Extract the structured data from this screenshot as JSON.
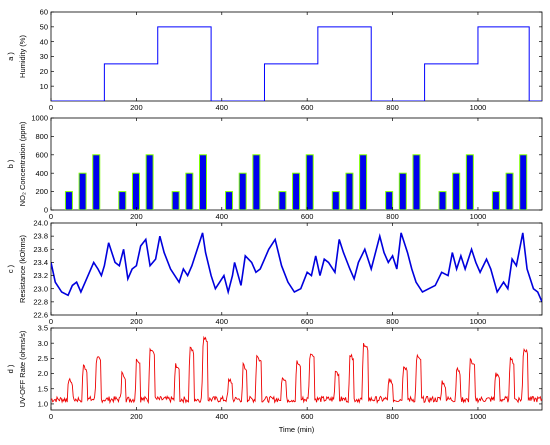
{
  "chart_data": [
    {
      "type": "line",
      "panel_label": "a )",
      "ylabel": "Humidity (%)",
      "xlim": [
        0,
        1150
      ],
      "ylim": [
        0,
        60
      ],
      "yticks": [
        10,
        20,
        30,
        40,
        50,
        60
      ],
      "xticks": [
        0,
        200,
        400,
        600,
        800,
        1000
      ],
      "color": "#0000ff",
      "x": [
        0,
        125,
        125,
        250,
        250,
        375,
        375,
        500,
        500,
        625,
        625,
        750,
        750,
        875,
        875,
        1000,
        1000,
        1120,
        1120,
        1150
      ],
      "y": [
        0,
        0,
        25,
        25,
        50,
        50,
        0,
        0,
        25,
        25,
        50,
        50,
        0,
        0,
        25,
        25,
        50,
        50,
        0,
        0
      ]
    },
    {
      "type": "bar",
      "panel_label": "b )",
      "ylabel": "NO₂ Concentration (ppm)",
      "xlim": [
        0,
        1150
      ],
      "ylim": [
        0,
        1000
      ],
      "yticks": [
        0,
        200,
        400,
        600,
        800,
        1000
      ],
      "xticks": [
        0,
        200,
        400,
        600,
        800,
        1000
      ],
      "color": "#0000ee",
      "edge_color": "#7fff00",
      "x": [
        42,
        74,
        106,
        167,
        199,
        231,
        292,
        324,
        356,
        417,
        449,
        481,
        542,
        574,
        606,
        667,
        699,
        731,
        792,
        824,
        856,
        917,
        949,
        981,
        1042,
        1074,
        1106
      ],
      "values": [
        200,
        400,
        600,
        200,
        400,
        600,
        200,
        400,
        600,
        200,
        400,
        600,
        200,
        400,
        600,
        200,
        400,
        600,
        200,
        400,
        600,
        200,
        400,
        600,
        200,
        400,
        600
      ]
    },
    {
      "type": "line",
      "panel_label": "c )",
      "ylabel": "Resistance (kOhms)",
      "xlim": [
        0,
        1150
      ],
      "ylim": [
        22.6,
        24.0
      ],
      "yticks": [
        22.6,
        22.8,
        23.0,
        23.2,
        23.4,
        23.6,
        23.8,
        24.0
      ],
      "xticks": [
        0,
        200,
        400,
        600,
        800,
        1000
      ],
      "color": "#0000dd",
      "x": [
        0,
        10,
        25,
        40,
        50,
        60,
        70,
        80,
        100,
        110,
        118,
        125,
        135,
        150,
        160,
        170,
        180,
        190,
        200,
        210,
        222,
        232,
        245,
        255,
        265,
        280,
        300,
        310,
        320,
        330,
        340,
        355,
        362,
        375,
        385,
        395,
        405,
        415,
        425,
        430,
        445,
        455,
        470,
        480,
        490,
        500,
        510,
        525,
        540,
        555,
        570,
        585,
        600,
        610,
        620,
        630,
        640,
        650,
        665,
        675,
        685,
        700,
        710,
        720,
        735,
        750,
        770,
        780,
        790,
        800,
        810,
        820,
        835,
        845,
        855,
        870,
        885,
        900,
        915,
        930,
        940,
        950,
        960,
        970,
        985,
        995,
        1005,
        1020,
        1030,
        1045,
        1060,
        1070,
        1080,
        1090,
        1105,
        1115,
        1130,
        1140,
        1150
      ],
      "y": [
        23.4,
        23.1,
        22.95,
        22.9,
        23.05,
        23.1,
        22.95,
        23.1,
        23.4,
        23.3,
        23.2,
        23.35,
        23.7,
        23.4,
        23.35,
        23.6,
        23.15,
        23.3,
        23.35,
        23.65,
        23.75,
        23.35,
        23.45,
        23.8,
        23.55,
        23.3,
        23.1,
        23.3,
        23.2,
        23.35,
        23.55,
        23.85,
        23.55,
        23.2,
        23.0,
        23.1,
        23.2,
        22.95,
        23.2,
        23.4,
        23.05,
        23.5,
        23.4,
        23.25,
        23.3,
        23.45,
        23.6,
        23.75,
        23.35,
        23.1,
        22.95,
        23.0,
        23.25,
        23.2,
        23.5,
        23.2,
        23.45,
        23.4,
        23.25,
        23.75,
        23.55,
        23.3,
        23.15,
        23.4,
        23.6,
        23.3,
        23.8,
        23.55,
        23.4,
        23.5,
        23.3,
        23.85,
        23.55,
        23.3,
        23.1,
        22.95,
        23.0,
        23.05,
        23.25,
        23.2,
        23.55,
        23.3,
        23.5,
        23.3,
        23.6,
        23.4,
        23.25,
        23.45,
        23.3,
        22.95,
        23.1,
        23.0,
        23.45,
        23.35,
        23.85,
        23.3,
        23.0,
        22.95,
        22.8
      ]
    },
    {
      "type": "line",
      "panel_label": "d )",
      "ylabel": "UV-OFF Rate (ohms/s)",
      "xlabel": "Time (min)",
      "xlim": [
        0,
        1150
      ],
      "ylim": [
        0.8,
        3.5
      ],
      "yticks": [
        1.0,
        1.5,
        2.0,
        2.5,
        3.0,
        3.5
      ],
      "xticks": [
        0,
        200,
        400,
        600,
        800,
        1000
      ],
      "color": "#ee0000",
      "pulse_shape": {
        "period": 125,
        "baseline": [
          1.05,
          1.25
        ],
        "pulses": [
          {
            "start": 38,
            "width": 12,
            "peak": 1.9
          },
          {
            "start": 72,
            "width": 12,
            "peak": 2.35
          },
          {
            "start": 103,
            "width": 14,
            "peak": 2.65
          }
        ],
        "cycle_peak_scale": [
          1.0,
          1.1,
          1.25,
          1.0,
          1.05,
          1.15,
          1.0,
          0.95,
          1.1
        ]
      }
    }
  ]
}
